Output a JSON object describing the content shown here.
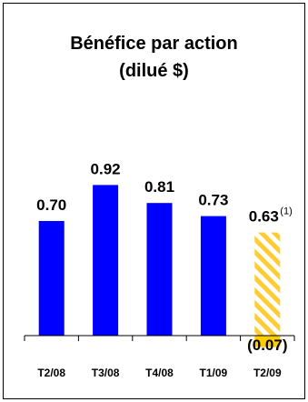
{
  "chart_data": {
    "type": "bar",
    "title_line1": "Bénéfice par action",
    "title_line2": "(dilué $)",
    "categories": [
      "T2/08",
      "T3/08",
      "T4/08",
      "T1/09",
      "T2/09"
    ],
    "values": [
      0.7,
      0.92,
      0.81,
      0.73,
      0.63
    ],
    "value_labels": [
      "0.70",
      "0.92",
      "0.81",
      "0.73",
      "0.63"
    ],
    "negative_value": -0.07,
    "negative_label": "(0.07)",
    "footnote_marker": "(1)",
    "colors": {
      "bar": "#0000ff",
      "highlight": "#ffcc33",
      "negative": "#ffcc00",
      "axis": "#000000"
    },
    "grid": false
  }
}
